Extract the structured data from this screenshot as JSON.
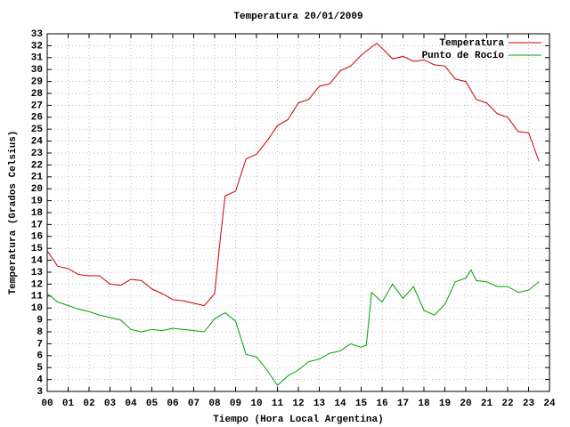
{
  "chart_data": {
    "type": "line",
    "title": "Temperatura 20/01/2009",
    "x_label": "Tiempo (Hora Local Argentina)",
    "y_label": "Temperatura (Grados Celsius)",
    "xlim": [
      0,
      24
    ],
    "xticks": [
      {
        "value": 0,
        "label": "00"
      },
      {
        "value": 1,
        "label": "01"
      },
      {
        "value": 2,
        "label": "02"
      },
      {
        "value": 3,
        "label": "03"
      },
      {
        "value": 4,
        "label": "04"
      },
      {
        "value": 5,
        "label": "05"
      },
      {
        "value": 6,
        "label": "06"
      },
      {
        "value": 7,
        "label": "07"
      },
      {
        "value": 8,
        "label": "08"
      },
      {
        "value": 9,
        "label": "09"
      },
      10,
      11,
      12,
      13,
      14,
      15,
      16,
      17,
      18,
      19,
      20,
      21,
      22,
      23,
      24
    ],
    "ylim": [
      3,
      33
    ],
    "yticks": [
      3,
      4,
      5,
      6,
      7,
      8,
      9,
      10,
      11,
      12,
      13,
      14,
      15,
      16,
      17,
      18,
      19,
      20,
      21,
      22,
      23,
      24,
      25,
      26,
      27,
      28,
      29,
      30,
      31,
      32,
      33
    ],
    "grid": true,
    "legend": "top-right",
    "series": [
      {
        "name": "Temperatura",
        "color": "#cc0000",
        "x": [
          0,
          0.5,
          1,
          1.5,
          2,
          2.5,
          3,
          3.5,
          4,
          4.5,
          5,
          5.5,
          6,
          6.5,
          7,
          7.5,
          8,
          8.25,
          8.5,
          9,
          9.5,
          10,
          10.5,
          11,
          11.5,
          12,
          12.5,
          13,
          13.5,
          14,
          14.5,
          15,
          15.5,
          15.75,
          16,
          16.5,
          17,
          17.5,
          18,
          18.5,
          19,
          19.5,
          20,
          20.5,
          21,
          21.5,
          22,
          22.5,
          23,
          23.5
        ],
        "values": [
          14.8,
          13.5,
          13.3,
          12.8,
          12.7,
          12.7,
          12.0,
          11.9,
          12.4,
          12.3,
          11.6,
          11.2,
          10.7,
          10.6,
          10.4,
          10.2,
          11.2,
          15.5,
          19.4,
          19.8,
          22.5,
          22.9,
          24.0,
          25.3,
          25.8,
          27.2,
          27.5,
          28.6,
          28.8,
          29.9,
          30.3,
          31.2,
          31.9,
          32.2,
          31.8,
          30.9,
          31.1,
          30.7,
          30.8,
          30.4,
          30.3,
          29.2,
          29.0,
          27.5,
          27.2,
          26.3,
          26.0,
          24.8,
          24.7,
          22.3
        ]
      },
      {
        "name": "Punto de Rocío",
        "color": "#00a000",
        "x": [
          0,
          0.5,
          1,
          1.5,
          2,
          2.5,
          3,
          3.5,
          4,
          4.5,
          5,
          5.5,
          6,
          6.5,
          7,
          7.5,
          8,
          8.5,
          9,
          9.5,
          10,
          10.5,
          11,
          11.5,
          12,
          12.5,
          13,
          13.5,
          14,
          14.5,
          15,
          15.25,
          15.5,
          16,
          16.5,
          17,
          17.5,
          18,
          18.5,
          19,
          19.5,
          20,
          20.25,
          20.5,
          21,
          21.5,
          22,
          22.5,
          23,
          23.5
        ],
        "values": [
          11.2,
          10.5,
          10.2,
          9.9,
          9.7,
          9.4,
          9.2,
          9.0,
          8.2,
          8.0,
          8.2,
          8.1,
          8.3,
          8.2,
          8.1,
          8.0,
          9.1,
          9.6,
          8.9,
          6.1,
          5.9,
          4.8,
          3.5,
          4.3,
          4.8,
          5.5,
          5.7,
          6.2,
          6.4,
          7.0,
          6.7,
          6.9,
          11.3,
          10.5,
          12.0,
          10.8,
          11.8,
          9.8,
          9.4,
          10.3,
          12.2,
          12.5,
          13.2,
          12.3,
          12.2,
          11.8,
          11.8,
          11.3,
          11.5,
          12.2
        ]
      }
    ]
  }
}
